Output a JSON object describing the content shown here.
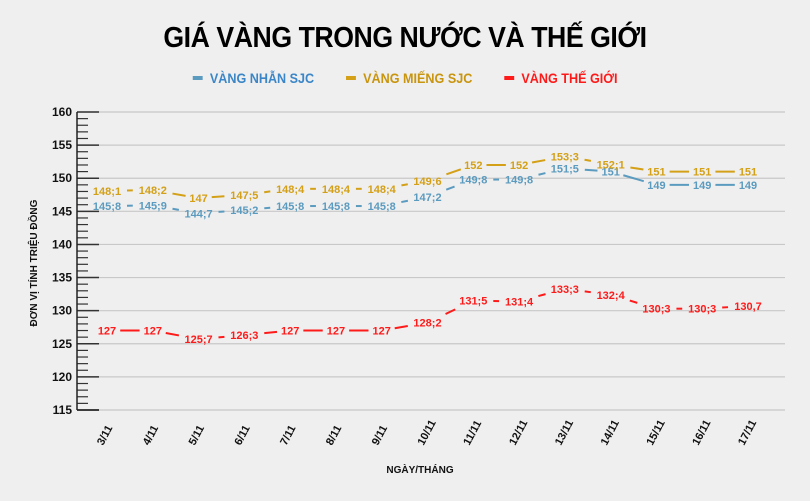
{
  "chart_data": {
    "type": "line",
    "title": "GIÁ VÀNG TRONG NƯỚC VÀ THẾ GIỚI",
    "xlabel": "NGÀY/THÁNG",
    "ylabel": "ĐƠN VỊ TÍNH TRIỆU ĐỒNG",
    "ylim": [
      115,
      160
    ],
    "yticks": [
      115,
      120,
      125,
      130,
      135,
      140,
      145,
      150,
      155,
      160
    ],
    "grid": true,
    "legend_position": "top",
    "categories": [
      "3/11",
      "4/11",
      "5/11",
      "6/11",
      "7/11",
      "8/11",
      "9/11",
      "10/11",
      "11/11",
      "12/11",
      "13/11",
      "14/11",
      "15/11",
      "16/11",
      "17/11"
    ],
    "series": [
      {
        "name": "VÀNG NHẪN SJC",
        "color": "#5b9bbf",
        "values": [
          145.8,
          145.9,
          144.7,
          145.2,
          145.8,
          145.8,
          145.8,
          147.2,
          149.8,
          149.8,
          151.5,
          151,
          149,
          149,
          149
        ],
        "labels": [
          "145;8",
          "145;9",
          "144;7",
          "145;2",
          "145;8",
          "145;8",
          "145;8",
          "147;2",
          "149;8",
          "149;8",
          "151;5",
          "151",
          "149",
          "149",
          "149"
        ]
      },
      {
        "name": "VÀNG MIẾNG SJC",
        "color": "#d4a017",
        "values": [
          148.1,
          148.2,
          147,
          147.5,
          148.4,
          148.4,
          148.4,
          149.6,
          152,
          152,
          153.3,
          152.1,
          151,
          151,
          151
        ],
        "labels": [
          "148;1",
          "148;2",
          "147",
          "147;5",
          "148;4",
          "148;4",
          "148;4",
          "149;6",
          "152",
          "152",
          "153;3",
          "152;1",
          "151",
          "151",
          "151"
        ]
      },
      {
        "name": "VÀNG THẾ GIỚI",
        "color": "#ff1a1a",
        "values": [
          127,
          127,
          125.7,
          126.3,
          127,
          127,
          127,
          128.2,
          131.5,
          131.4,
          133.3,
          132.4,
          130.3,
          130.3,
          130.7
        ],
        "labels": [
          "127",
          "127",
          "125;7",
          "126;3",
          "127",
          "127",
          "127",
          "128;2",
          "131;5",
          "131;4",
          "133;3",
          "132;4",
          "130;3",
          "130;3",
          "130,7"
        ]
      }
    ]
  }
}
